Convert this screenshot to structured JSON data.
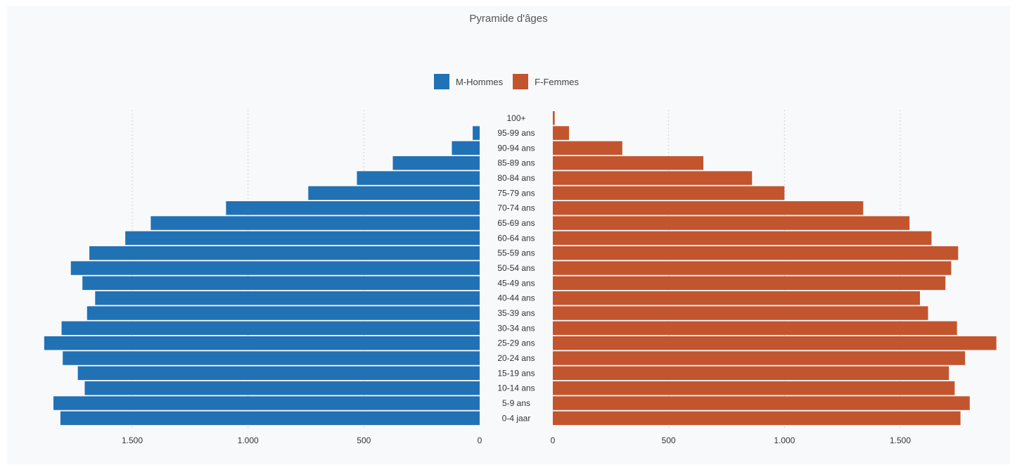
{
  "chart_data": {
    "type": "bar",
    "title": "Pyramide d'âges",
    "legend": [
      {
        "name": "M-Hommes",
        "color": "#2171b5"
      },
      {
        "name": "F-Femmes",
        "color": "#c2552e"
      }
    ],
    "categories": [
      "100+",
      "95-99 ans",
      "90-94 ans",
      "85-89 ans",
      "80-84 ans",
      "75-79 ans",
      "70-74 ans",
      "65-69 ans",
      "60-64 ans",
      "55-59 ans",
      "50-54 ans",
      "45-49 ans",
      "40-44 ans",
      "35-39 ans",
      "30-34 ans",
      "25-29 ans",
      "20-24 ans",
      "15-19 ans",
      "10-14 ans",
      "5-9 ans",
      "0-4 jaar"
    ],
    "series": [
      {
        "name": "M-Hommes",
        "color": "#2171b5",
        "values": [
          0,
          30,
          120,
          375,
          530,
          740,
          1095,
          1420,
          1530,
          1685,
          1765,
          1715,
          1660,
          1695,
          1805,
          1880,
          1800,
          1735,
          1705,
          1840,
          1810
        ]
      },
      {
        "name": "F-Femmes",
        "color": "#c2552e",
        "values": [
          8,
          70,
          300,
          650,
          860,
          1000,
          1340,
          1540,
          1635,
          1750,
          1720,
          1695,
          1585,
          1620,
          1745,
          1915,
          1780,
          1710,
          1735,
          1800,
          1760
        ]
      }
    ],
    "xlim": [
      0,
      1950
    ],
    "ticks": [
      {
        "value": 0,
        "label": "0"
      },
      {
        "value": 500,
        "label": "500"
      },
      {
        "value": 1000,
        "label": "1.000"
      },
      {
        "value": 1500,
        "label": "1.500"
      }
    ],
    "grid": true,
    "legend_position": "top-center"
  }
}
